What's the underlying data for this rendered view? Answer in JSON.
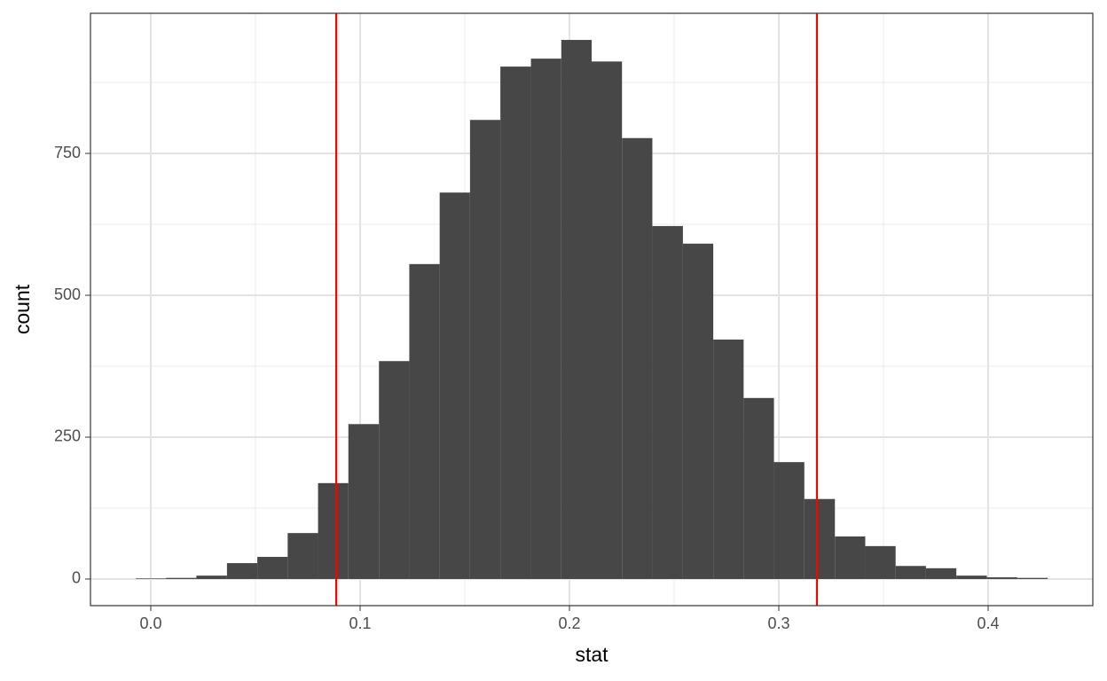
{
  "chart_data": {
    "type": "histogram",
    "x_label": "stat",
    "y_label": "count",
    "bins": [
      -0.0072,
      0.0073,
      0.0218,
      0.0364,
      0.0509,
      0.0654,
      0.0799,
      0.0944,
      0.109,
      0.1235,
      0.138,
      0.1525,
      0.167,
      0.1816,
      0.1961,
      0.2106,
      0.2251,
      0.2396,
      0.2542,
      0.2687,
      0.2832,
      0.2977,
      0.3122,
      0.3268,
      0.3413,
      0.3558,
      0.3703,
      0.3848,
      0.3994,
      0.4139,
      0.4284
    ],
    "counts": [
      1,
      2,
      6,
      28,
      39,
      81,
      169,
      273,
      384,
      555,
      681,
      809,
      903,
      917,
      950,
      912,
      777,
      622,
      591,
      422,
      319,
      206,
      141,
      75,
      58,
      23,
      19,
      6,
      3,
      2
    ],
    "color": "#474747",
    "vlines": [
      0.0886,
      0.3182
    ],
    "vline_color": "#ff0000",
    "xlim": [
      -0.0288,
      0.45
    ],
    "ylim": [
      -46.9,
      996.9
    ],
    "xticks": [
      {
        "value": 0,
        "label": "0.0"
      },
      0.1,
      0.2,
      0.3,
      0.4
    ],
    "yticks": [
      0,
      250,
      500,
      750
    ],
    "minor_xticks": [
      0.05,
      0.15,
      0.25,
      0.35
    ],
    "minor_yticks": [
      125,
      375,
      625,
      875
    ],
    "grid": true
  }
}
